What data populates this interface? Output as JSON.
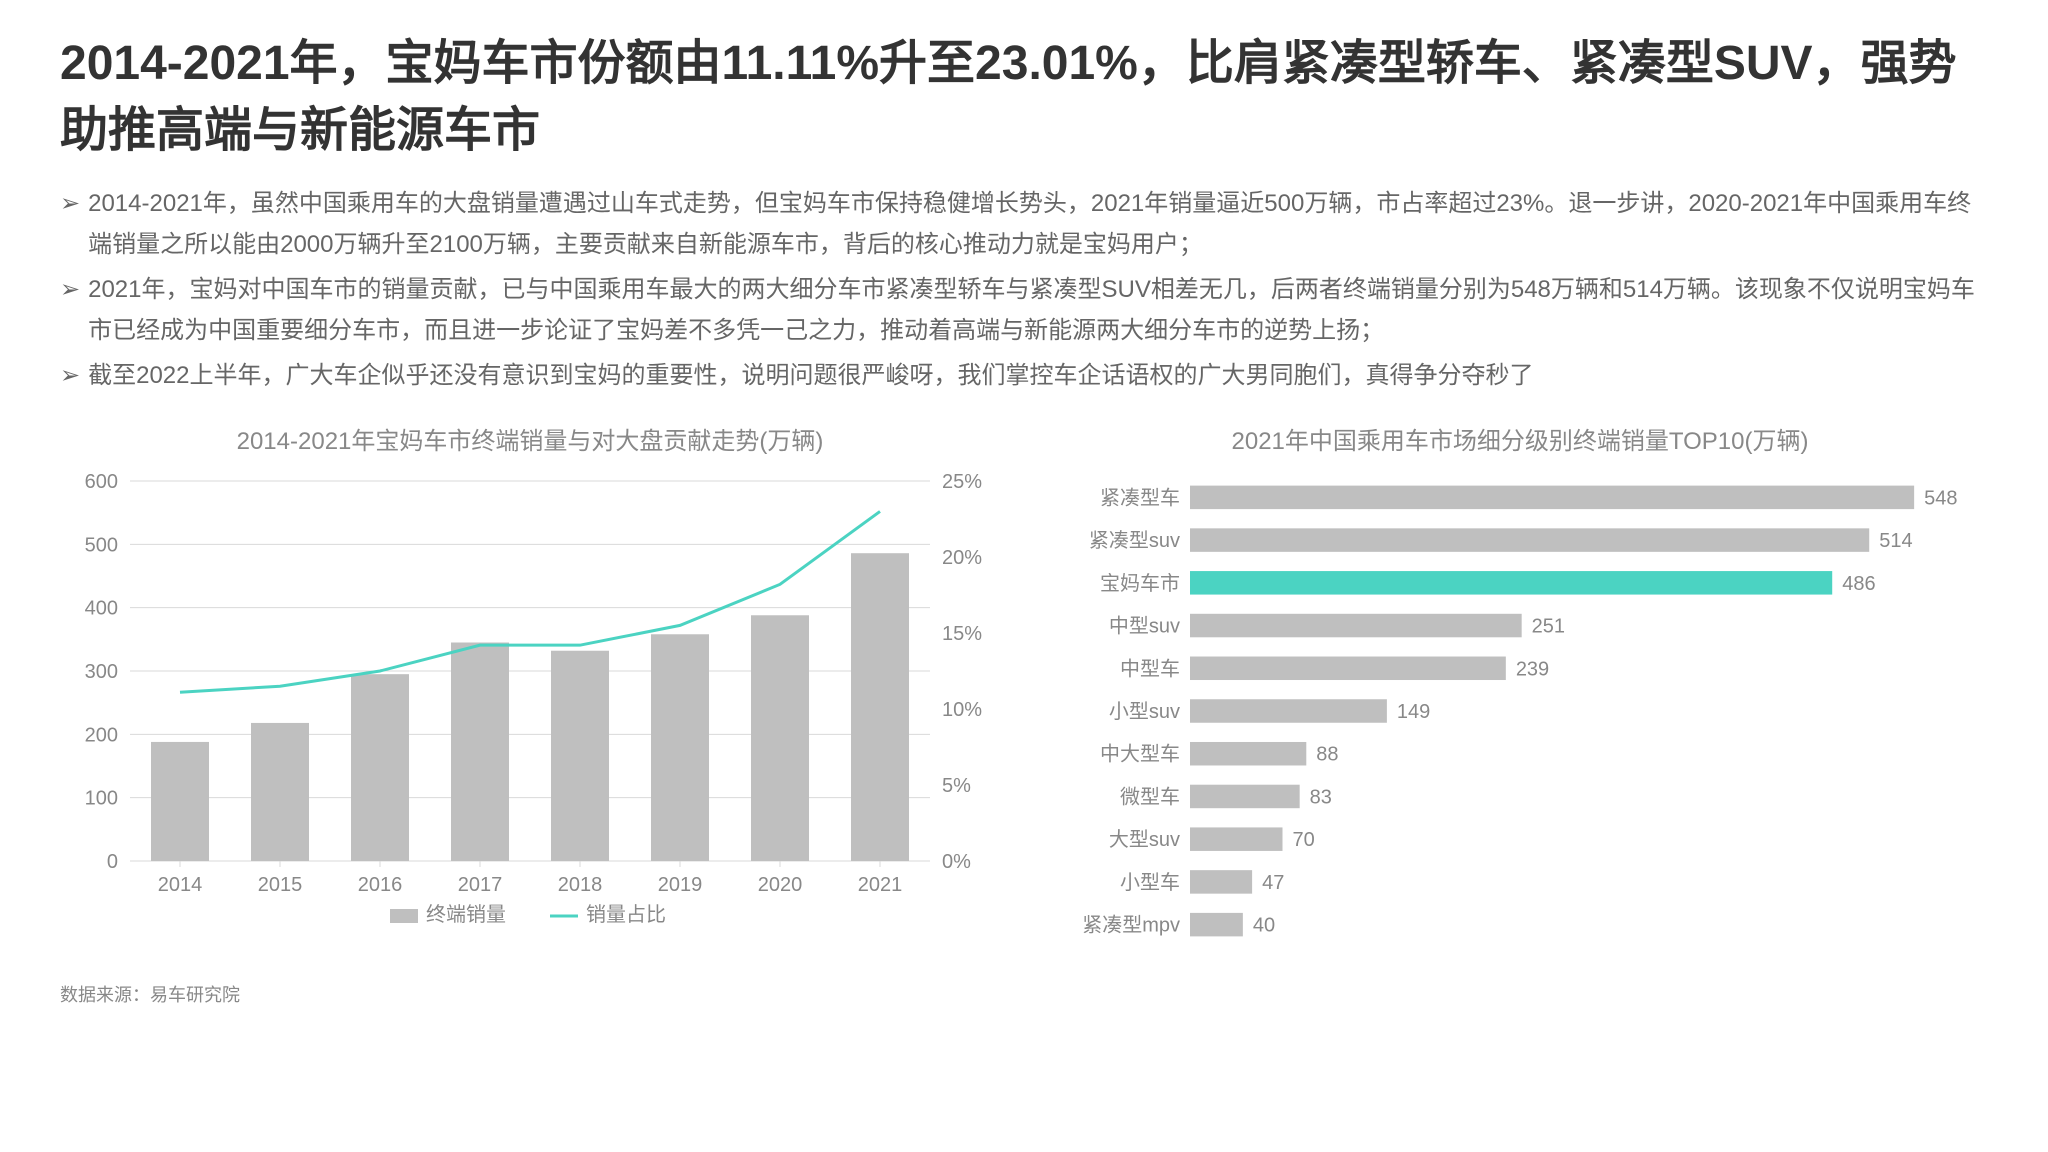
{
  "title": "2014-2021年，宝妈车市份额由11.11%升至23.01%，比肩紧凑型轿车、紧凑型SUV，强势助推高端与新能源车市",
  "bullets": [
    "2014-2021年，虽然中国乘用车的大盘销量遭遇过山车式走势，但宝妈车市保持稳健增长势头，2021年销量逼近500万辆，市占率超过23%。退一步讲，2020-2021年中国乘用车终端销量之所以能由2000万辆升至2100万辆，主要贡献来自新能源车市，背后的核心推动力就是宝妈用户；",
    "2021年，宝妈对中国车市的销量贡献，已与中国乘用车最大的两大细分车市紧凑型轿车与紧凑型SUV相差无几，后两者终端销量分别为548万辆和514万辆。该现象不仅说明宝妈车市已经成为中国重要细分车市，而且进一步论证了宝妈差不多凭一己之力，推动着高端与新能源两大细分车市的逆势上扬；",
    "截至2022上半年，广大车企似乎还没有意识到宝妈的重要性，说明问题很严峻呀，我们掌控车企话语权的广大男同胞们，真得争分夺秒了"
  ],
  "chart1": {
    "type": "combo-bar-line",
    "title": "2014-2021年宝妈车市终端销量与对大盘贡献走势(万辆)",
    "categories": [
      "2014",
      "2015",
      "2016",
      "2017",
      "2018",
      "2019",
      "2020",
      "2021"
    ],
    "bar_values": [
      188,
      218,
      295,
      345,
      332,
      358,
      388,
      486
    ],
    "line_values": [
      11.1,
      11.5,
      12.5,
      14.2,
      14.2,
      15.5,
      18.2,
      23.0
    ],
    "y_left_label": "",
    "y_left_max": 600,
    "y_left_step": 100,
    "y_right_max": 25,
    "y_right_step": 5,
    "y_right_suffix": "%",
    "bar_color": "#bfbfbf",
    "line_color": "#4bd3c2",
    "grid_color": "#d9d9d9",
    "axis_text_color": "#888888",
    "axis_fontsize": 20,
    "legend": {
      "bar": "终端销量",
      "line": "销量占比"
    },
    "bar_width_ratio": 0.58,
    "line_width": 3
  },
  "chart2": {
    "type": "hbar",
    "title": "2021年中国乘用车市场细分级别终端销量TOP10(万辆)",
    "categories": [
      "紧凑型车",
      "紧凑型suv",
      "宝妈车市",
      "中型suv",
      "中型车",
      "小型suv",
      "中大型车",
      "微型车",
      "大型suv",
      "小型车",
      "紧凑型mpv"
    ],
    "values": [
      548,
      514,
      486,
      251,
      239,
      149,
      88,
      83,
      70,
      47,
      40
    ],
    "highlight_index": 2,
    "bar_color": "#bfbfbf",
    "highlight_color": "#4bd3c2",
    "axis_text_color": "#888888",
    "value_text_color": "#888888",
    "axis_fontsize": 20,
    "value_fontsize": 20,
    "x_max": 560,
    "bar_height_ratio": 0.55
  },
  "footer": "数据来源：易车研究院"
}
